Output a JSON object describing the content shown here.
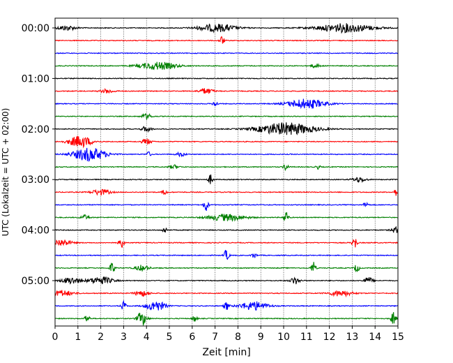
{
  "chart_data": {
    "type": "line",
    "title": "",
    "xlabel": "Zeit  [min]",
    "ylabel": "UTC (Lokalzeit = UTC + 02:00)",
    "xlim": [
      0,
      15
    ],
    "x_ticks": [
      "0",
      "1",
      "2",
      "3",
      "4",
      "5",
      "6",
      "7",
      "8",
      "9",
      "10",
      "11",
      "12",
      "13",
      "14",
      "15"
    ],
    "y_tick_labels": [
      "00:00",
      "01:00",
      "02:00",
      "03:00",
      "04:00",
      "05:00"
    ],
    "row_interval_minutes": 15,
    "grid": "vertical dotted lines at each minute",
    "colors": [
      "#000000",
      "#ff0000",
      "#0000ff",
      "#008000"
    ],
    "rows": [
      {
        "start": "00:00",
        "color": "#000000",
        "events": [
          [
            0.5,
            0.4,
            0.5
          ],
          [
            7.1,
            0.8,
            0.8
          ],
          [
            12.7,
            1.2,
            0.9
          ]
        ]
      },
      {
        "start": "00:15",
        "color": "#ff0000",
        "events": [
          [
            7.3,
            0.1,
            0.9
          ]
        ]
      },
      {
        "start": "00:30",
        "color": "#0000ff",
        "events": []
      },
      {
        "start": "00:45",
        "color": "#008000",
        "events": [
          [
            4.5,
            0.8,
            0.8
          ],
          [
            11.4,
            0.2,
            0.4
          ]
        ]
      },
      {
        "start": "01:00",
        "color": "#000000",
        "events": []
      },
      {
        "start": "01:15",
        "color": "#ff0000",
        "events": [
          [
            2.3,
            0.3,
            0.4
          ],
          [
            6.6,
            0.3,
            0.6
          ]
        ]
      },
      {
        "start": "01:30",
        "color": "#0000ff",
        "events": [
          [
            7.0,
            0.1,
            0.6
          ],
          [
            11.0,
            0.8,
            1.0
          ]
        ]
      },
      {
        "start": "01:45",
        "color": "#008000",
        "events": [
          [
            4.0,
            0.2,
            0.6
          ]
        ]
      },
      {
        "start": "02:00",
        "color": "#000000",
        "events": [
          [
            10.1,
            1.2,
            1.3
          ],
          [
            4.0,
            0.2,
            0.6
          ]
        ]
      },
      {
        "start": "02:15",
        "color": "#ff0000",
        "events": [
          [
            1.1,
            0.5,
            1.2
          ],
          [
            4.0,
            0.2,
            0.6
          ]
        ]
      },
      {
        "start": "02:30",
        "color": "#0000ff",
        "events": [
          [
            1.5,
            0.7,
            1.4
          ],
          [
            4.1,
            0.1,
            0.5
          ],
          [
            5.5,
            0.2,
            0.4
          ]
        ]
      },
      {
        "start": "02:45",
        "color": "#008000",
        "events": [
          [
            5.2,
            0.2,
            0.4
          ],
          [
            10.1,
            0.1,
            0.8
          ],
          [
            11.5,
            0.1,
            0.4
          ]
        ]
      },
      {
        "start": "03:00",
        "color": "#000000",
        "events": [
          [
            6.8,
            0.1,
            1.0
          ],
          [
            13.3,
            0.3,
            0.5
          ]
        ]
      },
      {
        "start": "03:15",
        "color": "#ff0000",
        "events": [
          [
            2.0,
            0.4,
            0.6
          ],
          [
            4.8,
            0.1,
            0.6
          ],
          [
            14.9,
            0.1,
            0.7
          ]
        ]
      },
      {
        "start": "03:30",
        "color": "#0000ff",
        "events": [
          [
            6.6,
            0.1,
            1.3
          ],
          [
            13.6,
            0.1,
            0.6
          ]
        ]
      },
      {
        "start": "03:45",
        "color": "#008000",
        "events": [
          [
            1.3,
            0.2,
            0.5
          ],
          [
            7.5,
            0.8,
            0.7
          ],
          [
            10.1,
            0.1,
            1.4
          ]
        ]
      },
      {
        "start": "04:00",
        "color": "#000000",
        "events": [
          [
            4.8,
            0.1,
            0.6
          ],
          [
            14.9,
            0.2,
            0.6
          ]
        ]
      },
      {
        "start": "04:15",
        "color": "#ff0000",
        "events": [
          [
            0.3,
            0.4,
            0.7
          ],
          [
            2.9,
            0.1,
            1.3
          ],
          [
            13.1,
            0.1,
            1.3
          ]
        ]
      },
      {
        "start": "04:30",
        "color": "#0000ff",
        "events": [
          [
            7.5,
            0.1,
            1.2
          ],
          [
            8.7,
            0.1,
            0.6
          ]
        ]
      },
      {
        "start": "04:45",
        "color": "#008000",
        "events": [
          [
            2.5,
            0.1,
            1.3
          ],
          [
            3.8,
            0.3,
            0.6
          ],
          [
            11.3,
            0.1,
            1.3
          ],
          [
            13.2,
            0.1,
            0.9
          ]
        ]
      },
      {
        "start": "05:00",
        "color": "#000000",
        "events": [
          [
            0.7,
            0.4,
            0.7
          ],
          [
            2.0,
            0.5,
            0.8
          ],
          [
            10.5,
            0.2,
            0.7
          ],
          [
            13.7,
            0.2,
            0.7
          ]
        ]
      },
      {
        "start": "05:15",
        "color": "#ff0000",
        "events": [
          [
            0.3,
            0.5,
            0.6
          ],
          [
            3.8,
            0.3,
            0.6
          ],
          [
            12.5,
            0.5,
            0.6
          ]
        ]
      },
      {
        "start": "05:30",
        "color": "#0000ff",
        "events": [
          [
            3.0,
            0.1,
            1.0
          ],
          [
            4.4,
            0.4,
            1.1
          ],
          [
            7.5,
            0.1,
            0.9
          ],
          [
            8.7,
            0.6,
            0.9
          ]
        ]
      },
      {
        "start": "05:45",
        "color": "#008000",
        "events": [
          [
            1.4,
            0.1,
            0.9
          ],
          [
            3.8,
            0.2,
            1.4
          ],
          [
            6.1,
            0.1,
            0.7
          ],
          [
            14.8,
            0.1,
            1.3
          ]
        ]
      }
    ]
  }
}
